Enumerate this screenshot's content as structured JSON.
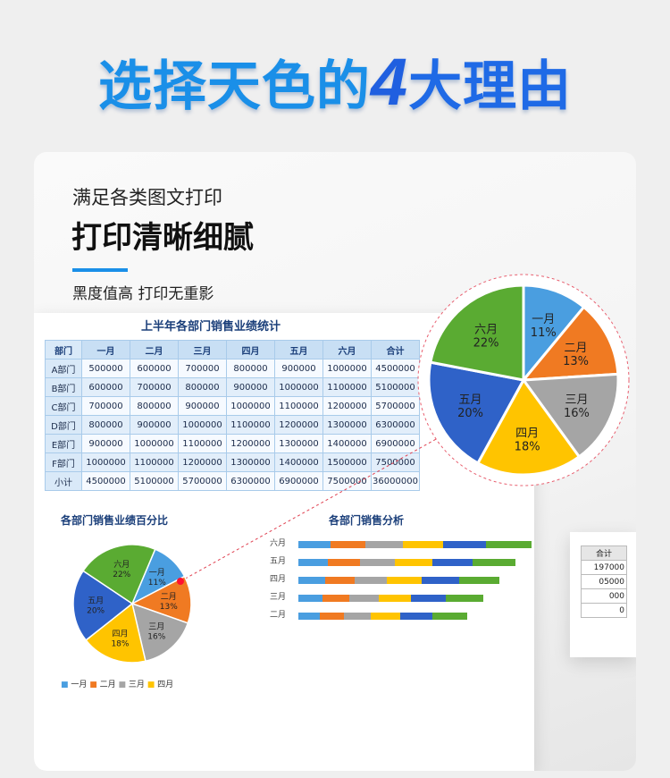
{
  "header": {
    "title_part1": "选择天色的",
    "title_number": "4",
    "title_part2": "大理由"
  },
  "feature": {
    "subtitle": "满足各类图文打印",
    "title": "打印清晰细腻",
    "description": "黑度值高 打印无重影",
    "accent_color": "#1a8fe8"
  },
  "left_sheet": {
    "header": "合计",
    "values": [
      "197000",
      "05000",
      "000",
      "0"
    ]
  },
  "sales_table": {
    "title": "上半年各部门销售业绩统计",
    "columns": [
      "部门",
      "一月",
      "二月",
      "三月",
      "四月",
      "五月",
      "六月",
      "合计"
    ],
    "rows": [
      [
        "A部门",
        "500000",
        "600000",
        "700000",
        "800000",
        "900000",
        "1000000",
        "4500000"
      ],
      [
        "B部门",
        "600000",
        "700000",
        "800000",
        "900000",
        "1000000",
        "1100000",
        "5100000"
      ],
      [
        "C部门",
        "700000",
        "800000",
        "900000",
        "1000000",
        "1100000",
        "1200000",
        "5700000"
      ],
      [
        "D部门",
        "800000",
        "900000",
        "1000000",
        "1100000",
        "1200000",
        "1300000",
        "6300000"
      ],
      [
        "E部门",
        "900000",
        "1000000",
        "1100000",
        "1200000",
        "1300000",
        "1400000",
        "6900000"
      ],
      [
        "F部门",
        "1000000",
        "1100000",
        "1200000",
        "1300000",
        "1400000",
        "1500000",
        "7500000"
      ],
      [
        "小计",
        "4500000",
        "5100000",
        "5700000",
        "6300000",
        "6900000",
        "7500000",
        "36000000"
      ]
    ]
  },
  "chart_data": [
    {
      "type": "pie",
      "title": "各部门销售业绩百分比",
      "categories": [
        "一月",
        "二月",
        "三月",
        "四月",
        "五月",
        "六月"
      ],
      "values": [
        11,
        13,
        16,
        18,
        20,
        22
      ],
      "labels": [
        "11%",
        "13%",
        "16%",
        "18%",
        "20%",
        "22%"
      ],
      "colors": [
        "#4a9ee0",
        "#f07a22",
        "#a5a5a5",
        "#ffc400",
        "#2f62c8",
        "#5aab32"
      ],
      "legend": [
        "一月",
        "二月",
        "三月",
        "四月"
      ],
      "legend_placement": "bottom"
    },
    {
      "type": "bar",
      "title": "各部门销售分析",
      "orientation": "horizontal",
      "stacked": true,
      "categories": [
        "六月",
        "五月",
        "四月",
        "三月",
        "二月"
      ]
    }
  ]
}
